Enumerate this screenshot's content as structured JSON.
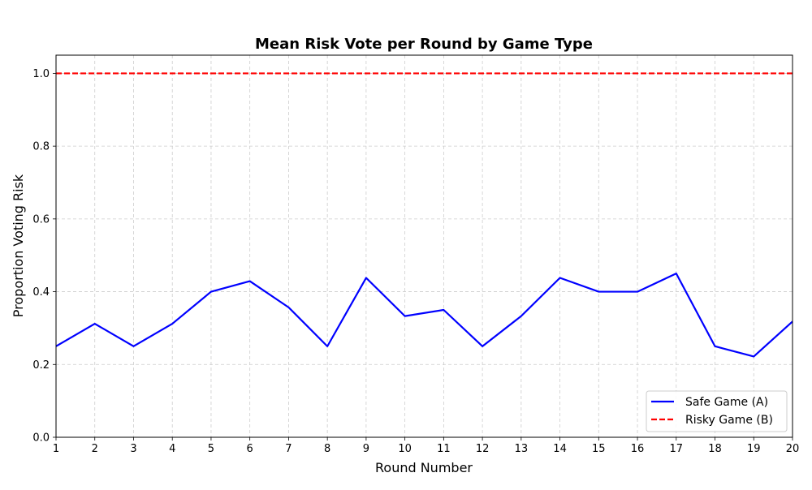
{
  "chart_data": {
    "type": "line",
    "title": "Mean Risk Vote per Round by Game Type",
    "xlabel": "Round Number",
    "ylabel": "Proportion Voting Risk",
    "x": [
      1,
      2,
      3,
      4,
      5,
      6,
      7,
      8,
      9,
      10,
      11,
      12,
      13,
      14,
      15,
      16,
      17,
      18,
      19,
      20
    ],
    "xlim": [
      1,
      20
    ],
    "ylim": [
      0,
      1.05
    ],
    "xticks": [
      "1",
      "2",
      "3",
      "4",
      "5",
      "6",
      "7",
      "8",
      "9",
      "10",
      "11",
      "12",
      "13",
      "14",
      "15",
      "16",
      "17",
      "18",
      "19",
      "20"
    ],
    "yticks": [
      {
        "value": 0.0,
        "label": "0.0"
      },
      {
        "value": 0.2,
        "label": "0.2"
      },
      {
        "value": 0.4,
        "label": "0.4"
      },
      {
        "value": 0.6,
        "label": "0.6"
      },
      {
        "value": 0.8,
        "label": "0.8"
      },
      {
        "value": 1.0,
        "label": "1.0"
      }
    ],
    "grid": true,
    "legend_position": "bottom-right",
    "series": [
      {
        "name": "Safe Game (A)",
        "color": "#0000ff",
        "style": "solid",
        "values": [
          0.25,
          0.312,
          0.25,
          0.312,
          0.4,
          0.429,
          0.357,
          0.25,
          0.438,
          0.333,
          0.35,
          0.25,
          0.333,
          0.438,
          0.4,
          0.4,
          0.45,
          0.25,
          0.222,
          0.318
        ]
      },
      {
        "name": "Risky Game (B)",
        "color": "#ff0000",
        "style": "dashed",
        "values": [
          1.0,
          1.0,
          1.0,
          1.0,
          1.0,
          1.0,
          1.0,
          1.0,
          1.0,
          1.0,
          1.0,
          1.0,
          1.0,
          1.0,
          1.0,
          1.0,
          1.0,
          1.0,
          1.0,
          1.0
        ]
      }
    ]
  }
}
